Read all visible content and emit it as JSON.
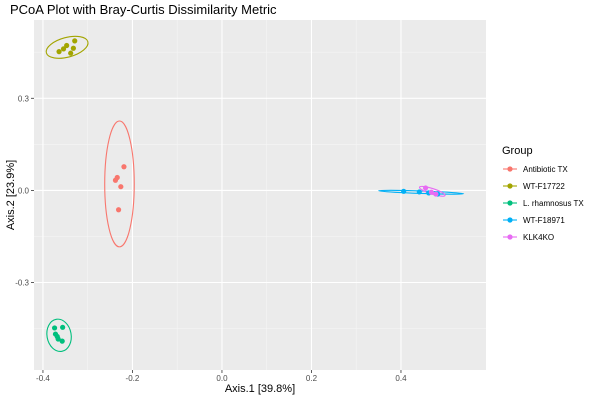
{
  "chart_data": {
    "type": "scatter",
    "title": "PCoA Plot with Bray-Curtis Dissimilarity Metric",
    "xlabel": "Axis.1   [39.8%]",
    "ylabel": "Axis.2   [23.9%]",
    "xlim": [
      -0.42,
      0.59
    ],
    "ylim": [
      -0.585,
      0.555
    ],
    "x_ticks": [
      -0.4,
      -0.2,
      0.0,
      0.2,
      0.4
    ],
    "x_tick_labels": [
      "-0.4",
      "-0.2",
      "0.0",
      "0.2",
      "0.4"
    ],
    "y_ticks": [
      -0.3,
      0.0,
      0.3
    ],
    "y_tick_labels": [
      "-0.3",
      "0.0",
      "0.3"
    ],
    "grid": true,
    "legend": {
      "title": "Group",
      "position": "right"
    },
    "series": [
      {
        "name": "Antibiotic TX",
        "color": "#F8766D",
        "points": [
          [
            -0.238,
            0.033
          ],
          [
            -0.234,
            0.042
          ],
          [
            -0.226,
            0.012
          ],
          [
            -0.219,
            0.077
          ],
          [
            -0.231,
            -0.063
          ]
        ],
        "ellipse": {
          "cx": -0.229,
          "cy": 0.021,
          "rx": 0.033,
          "ry": 0.205,
          "angle": 0
        }
      },
      {
        "name": "WT-F17722",
        "color": "#A3A500",
        "points": [
          [
            -0.364,
            0.452
          ],
          [
            -0.354,
            0.461
          ],
          [
            -0.347,
            0.472
          ],
          [
            -0.338,
            0.447
          ],
          [
            -0.332,
            0.463
          ],
          [
            -0.329,
            0.487
          ]
        ],
        "ellipse": {
          "cx": -0.346,
          "cy": 0.466,
          "rx": 0.048,
          "ry": 0.032,
          "angle": -15
        }
      },
      {
        "name": "L. rhamnosus TX",
        "color": "#00BF7D",
        "points": [
          [
            -0.374,
            -0.448
          ],
          [
            -0.356,
            -0.446
          ],
          [
            -0.372,
            -0.468
          ],
          [
            -0.366,
            -0.484
          ],
          [
            -0.357,
            -0.491
          ],
          [
            -0.368,
            -0.476
          ]
        ],
        "ellipse": {
          "cx": -0.364,
          "cy": -0.472,
          "rx": 0.027,
          "ry": 0.053,
          "angle": -10
        }
      },
      {
        "name": "WT-F18971",
        "color": "#00B0F6",
        "points": [
          [
            0.406,
            -0.003
          ],
          [
            0.441,
            -0.005
          ],
          [
            0.462,
            -0.008
          ],
          [
            0.482,
            -0.012
          ]
        ],
        "ellipse": {
          "cx": 0.445,
          "cy": -0.006,
          "rx": 0.095,
          "ry": 0.004,
          "angle": 2
        }
      },
      {
        "name": "KLK4KO",
        "color": "#E76BF3",
        "points": [
          [
            0.455,
            0.008
          ],
          [
            0.468,
            -0.006
          ],
          [
            0.478,
            -0.012
          ]
        ],
        "ellipse": {
          "cx": 0.47,
          "cy": -0.003,
          "rx": 0.03,
          "ry": 0.009,
          "angle": 18
        }
      }
    ]
  }
}
